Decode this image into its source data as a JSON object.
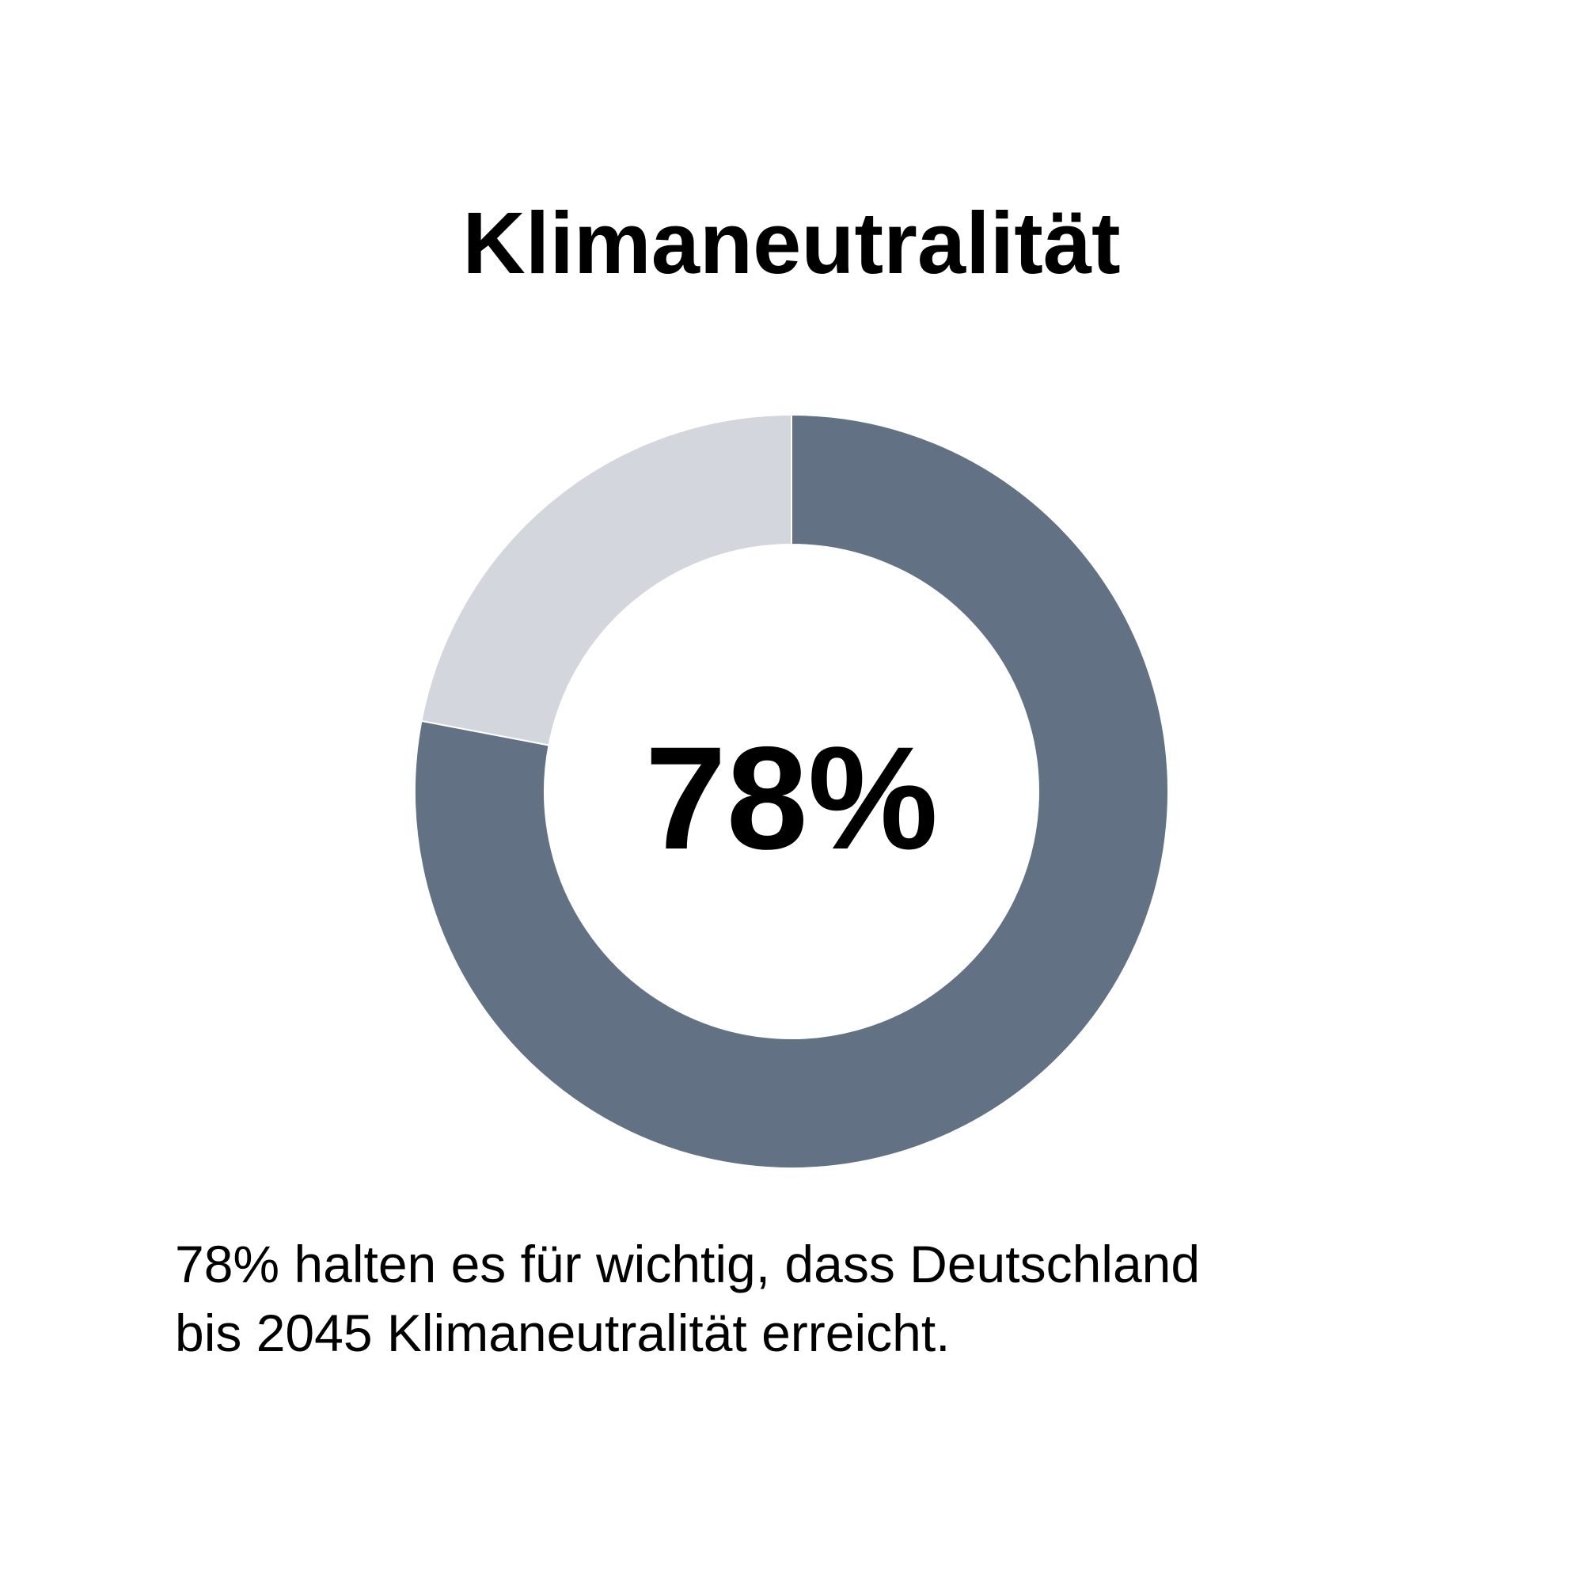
{
  "chart_data": {
    "type": "donut",
    "title": "Klimaneutralität",
    "values": [
      78,
      22
    ],
    "colors": [
      "#627184",
      "#d3d6dc"
    ],
    "center_label": "78%",
    "caption": [
      "78% halten es für wichtig, dass Deutschland",
      "bis 2045 Klimaneutralität erreicht."
    ]
  }
}
